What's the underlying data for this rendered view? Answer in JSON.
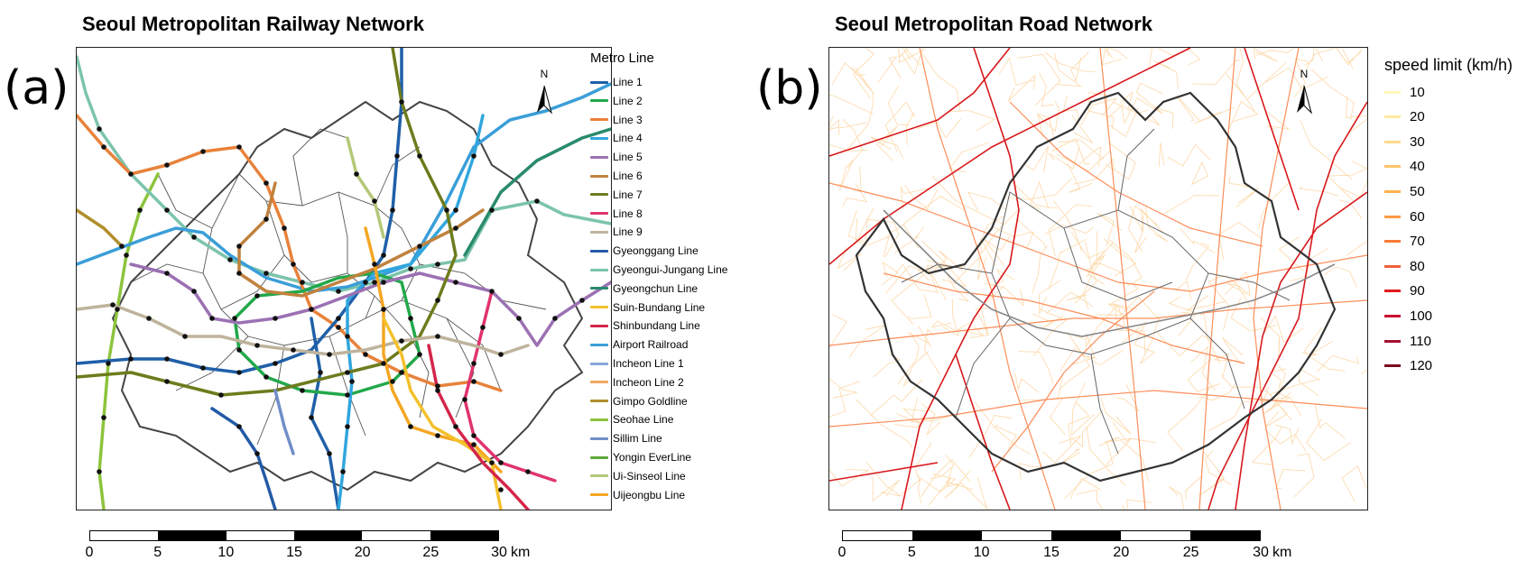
{
  "panel_a": {
    "label": "(a)",
    "title": "Seoul Metropolitan Railway Network",
    "legend_title": "Metro Line",
    "north_label": "N",
    "lines": [
      {
        "name": "Line 1",
        "color": "#1f5fa8"
      },
      {
        "name": "Line 2",
        "color": "#22a84a"
      },
      {
        "name": "Line 3",
        "color": "#e8823a"
      },
      {
        "name": "Line 4",
        "color": "#31a6de"
      },
      {
        "name": "Line 5",
        "color": "#9b71b3"
      },
      {
        "name": "Line 6",
        "color": "#c0823e"
      },
      {
        "name": "Line 7",
        "color": "#6e7b1d"
      },
      {
        "name": "Line 8",
        "color": "#e0336e"
      },
      {
        "name": "Line 9",
        "color": "#bfb39c"
      },
      {
        "name": "Gyeonggang Line",
        "color": "#235aa6"
      },
      {
        "name": "Gyeongui-Jungang Line",
        "color": "#7cc4ac"
      },
      {
        "name": "Gyeongchun Line",
        "color": "#2a8a6e"
      },
      {
        "name": "Suin-Bundang Line",
        "color": "#f4c12c"
      },
      {
        "name": "Shinbundang Line",
        "color": "#d4254a"
      },
      {
        "name": "Airport Railroad",
        "color": "#3a9ed8"
      },
      {
        "name": "Incheon Line 1",
        "color": "#8aa6d8"
      },
      {
        "name": "Incheon Line 2",
        "color": "#f0a860"
      },
      {
        "name": "Gimpo Goldline",
        "color": "#b08f2c"
      },
      {
        "name": "Seohae Line",
        "color": "#8cc43c"
      },
      {
        "name": "Sillim Line",
        "color": "#6f8ec8"
      },
      {
        "name": "Yongin EverLine",
        "color": "#5fa83a"
      },
      {
        "name": "Ui-Sinseol Line",
        "color": "#b4c878"
      },
      {
        "name": "Uijeongbu Line",
        "color": "#f5a623"
      }
    ],
    "scale": {
      "ticks": [
        "0",
        "5",
        "10",
        "15",
        "20",
        "25",
        "30"
      ],
      "unit": "km"
    }
  },
  "panel_b": {
    "label": "(b)",
    "title": "Seoul Metropolitan Road Network",
    "legend_title": "speed limit (km/h)",
    "north_label": "N",
    "speeds": [
      {
        "value": "10",
        "color": "#fff7bc"
      },
      {
        "value": "20",
        "color": "#fee9a0"
      },
      {
        "value": "30",
        "color": "#fed98e"
      },
      {
        "value": "40",
        "color": "#fec56a"
      },
      {
        "value": "50",
        "color": "#feb24c"
      },
      {
        "value": "60",
        "color": "#fd9a44"
      },
      {
        "value": "70",
        "color": "#f97a35"
      },
      {
        "value": "80",
        "color": "#f0603a"
      },
      {
        "value": "90",
        "color": "#e31a1c"
      },
      {
        "value": "100",
        "color": "#c8102e"
      },
      {
        "value": "110",
        "color": "#a50f32"
      },
      {
        "value": "120",
        "color": "#7a0a1e"
      }
    ],
    "scale": {
      "ticks": [
        "0",
        "5",
        "10",
        "15",
        "20",
        "25",
        "30"
      ],
      "unit": "km"
    }
  }
}
